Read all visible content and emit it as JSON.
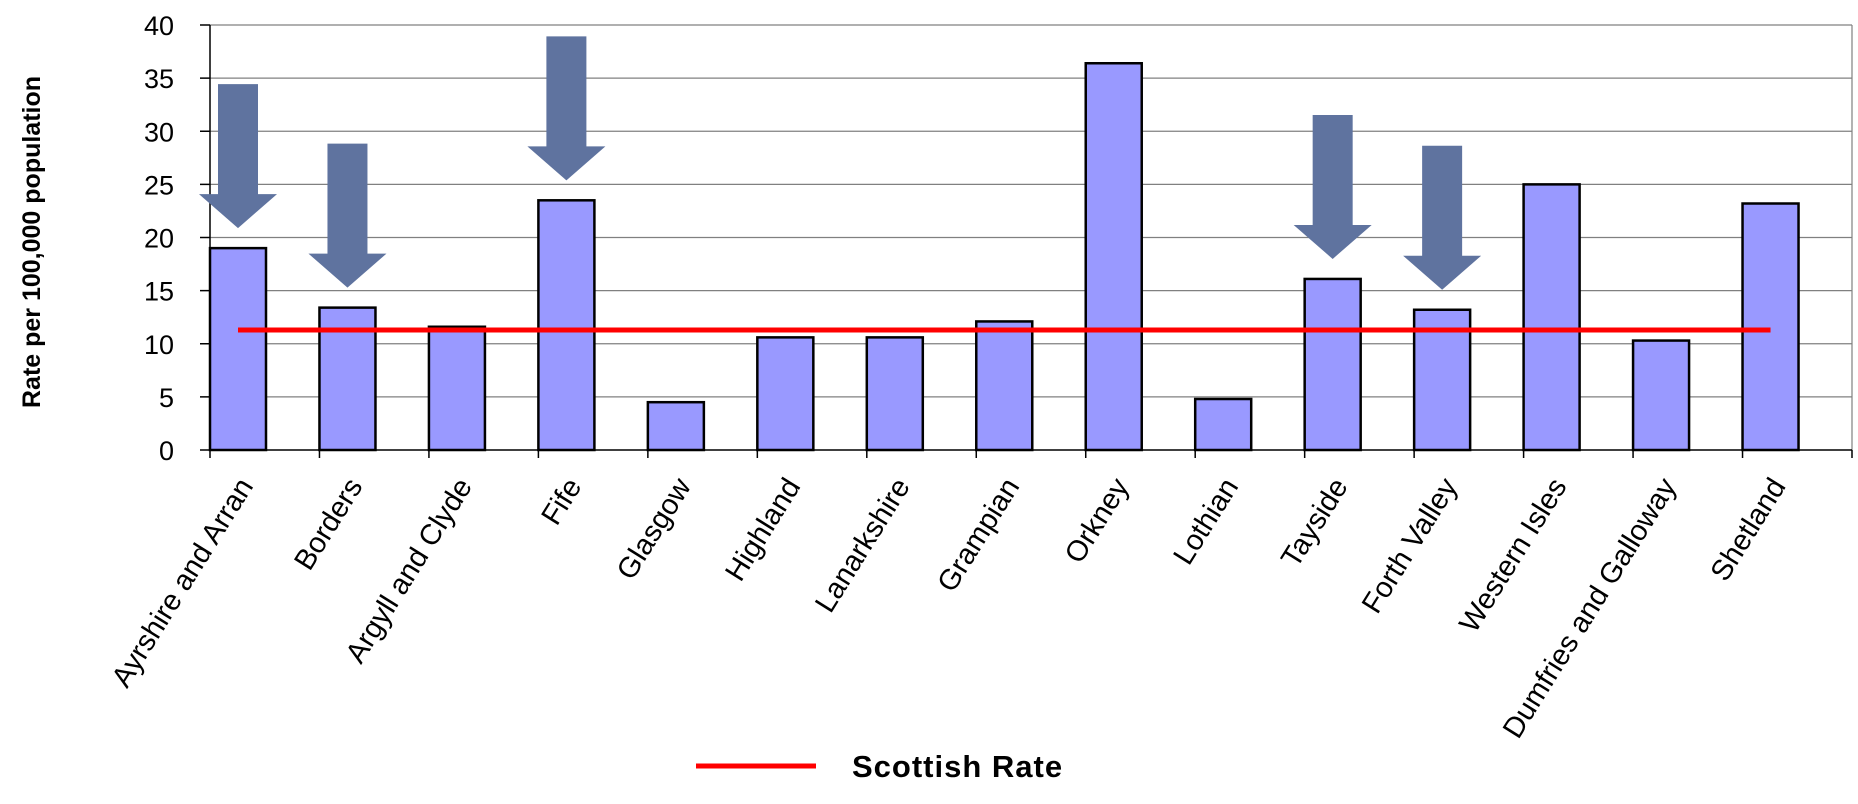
{
  "chart_data": {
    "type": "bar",
    "ylabel": "Rate per 100,000 population",
    "ylim": [
      0,
      40
    ],
    "yticks": [
      0,
      5,
      10,
      15,
      20,
      25,
      30,
      35,
      40
    ],
    "grid": true,
    "categories": [
      "Ayrshire and Arran",
      "Borders",
      "Argyll and Clyde",
      "Fife",
      "Glasgow",
      "Highland",
      "Lanarkshire",
      "Grampian",
      "Orkney",
      "Lothian",
      "Tayside",
      "Forth Valley",
      "Western Isles",
      "Dumfries and Galloway",
      "Shetland"
    ],
    "values": [
      19.0,
      13.4,
      11.6,
      23.5,
      4.5,
      10.6,
      10.6,
      12.1,
      36.4,
      4.8,
      16.1,
      13.2,
      25.0,
      10.3,
      23.2
    ],
    "reference_line": {
      "name": "Scottish Rate",
      "value": 11.3
    },
    "down_arrows_on": [
      "Ayrshire and Arran",
      "Borders",
      "Fife",
      "Tayside",
      "Forth Valley"
    ],
    "legend": {
      "position": "bottom",
      "entries": [
        "Scottish Rate"
      ]
    },
    "colors": {
      "bar": "#9999ff",
      "bar_stroke": "#000000",
      "reference_line": "#ff0000",
      "arrow": "#5f739f",
      "grid": "#808080"
    }
  }
}
